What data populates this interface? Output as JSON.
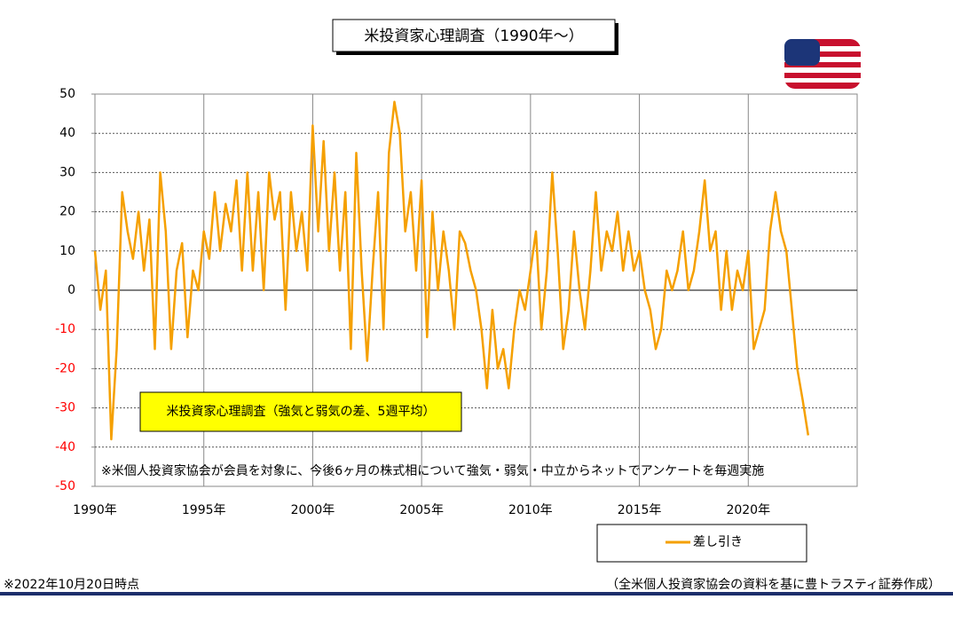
{
  "chart_data": {
    "type": "line",
    "title": "米投資家心理調査（1990年～）",
    "annotation": "米投資家心理調査（強気と弱気の差、5週平均）",
    "note": "※米個人投資家協会が会員を対象に、今後6ヶ月の株式相について強気・弱気・中立からネットでアンケートを毎週実施",
    "footer_left": "※2022年10月20日時点",
    "footer_right": "（全米個人投資家協会の資料を基に豊トラスティ証券作成）",
    "xlim": [
      1990,
      2025
    ],
    "xticks": [
      {
        "value": 1990,
        "label": "1990年"
      },
      {
        "value": 1995,
        "label": "1995年"
      },
      {
        "value": 2000,
        "label": "2000年"
      },
      {
        "value": 2005,
        "label": "2005年"
      },
      {
        "value": 2010,
        "label": "2010年"
      },
      {
        "value": 2015,
        "label": "2015年"
      },
      {
        "value": 2020,
        "label": "2020年"
      }
    ],
    "ylim": [
      -50,
      50
    ],
    "yticks": [
      -50,
      -40,
      -30,
      -20,
      -10,
      0,
      10,
      20,
      30,
      40,
      50
    ],
    "grid": true,
    "negative_tick_color": "#ff0000",
    "x": [
      1990,
      1990.25,
      1990.5,
      1990.75,
      1991,
      1991.25,
      1991.5,
      1991.75,
      1992,
      1992.25,
      1992.5,
      1992.75,
      1993,
      1993.25,
      1993.5,
      1993.75,
      1994,
      1994.25,
      1994.5,
      1994.75,
      1995,
      1995.25,
      1995.5,
      1995.75,
      1996,
      1996.25,
      1996.5,
      1996.75,
      1997,
      1997.25,
      1997.5,
      1997.75,
      1998,
      1998.25,
      1998.5,
      1998.75,
      1999,
      1999.25,
      1999.5,
      1999.75,
      2000,
      2000.25,
      2000.5,
      2000.75,
      2001,
      2001.25,
      2001.5,
      2001.75,
      2002,
      2002.25,
      2002.5,
      2002.75,
      2003,
      2003.25,
      2003.5,
      2003.75,
      2004,
      2004.25,
      2004.5,
      2004.75,
      2005,
      2005.25,
      2005.5,
      2005.75,
      2006,
      2006.25,
      2006.5,
      2006.75,
      2007,
      2007.25,
      2007.5,
      2007.75,
      2008,
      2008.25,
      2008.5,
      2008.75,
      2009,
      2009.25,
      2009.5,
      2009.75,
      2010,
      2010.25,
      2010.5,
      2010.75,
      2011,
      2011.25,
      2011.5,
      2011.75,
      2012,
      2012.25,
      2012.5,
      2012.75,
      2013,
      2013.25,
      2013.5,
      2013.75,
      2014,
      2014.25,
      2014.5,
      2014.75,
      2015,
      2015.25,
      2015.5,
      2015.75,
      2016,
      2016.25,
      2016.5,
      2016.75,
      2017,
      2017.25,
      2017.5,
      2017.75,
      2018,
      2018.25,
      2018.5,
      2018.75,
      2019,
      2019.25,
      2019.5,
      2019.75,
      2020,
      2020.25,
      2020.5,
      2020.75,
      2021,
      2021.25,
      2021.5,
      2021.75,
      2022,
      2022.25,
      2022.5,
      2022.75
    ],
    "series": [
      {
        "name": "差し引き",
        "color": "#f5a000",
        "values": [
          10,
          -5,
          5,
          -38,
          -15,
          25,
          15,
          8,
          20,
          5,
          18,
          -15,
          30,
          15,
          -15,
          5,
          12,
          -12,
          5,
          0,
          15,
          8,
          25,
          10,
          22,
          15,
          28,
          5,
          30,
          5,
          25,
          0,
          30,
          18,
          25,
          -5,
          25,
          10,
          20,
          5,
          42,
          15,
          38,
          10,
          30,
          5,
          25,
          -15,
          35,
          5,
          -18,
          5,
          25,
          -10,
          35,
          48,
          40,
          15,
          25,
          5,
          28,
          -12,
          20,
          0,
          15,
          5,
          -10,
          15,
          12,
          5,
          0,
          -10,
          -25,
          -5,
          -20,
          -15,
          -25,
          -10,
          0,
          -5,
          5,
          15,
          -10,
          5,
          30,
          10,
          -15,
          -5,
          15,
          0,
          -10,
          5,
          25,
          5,
          15,
          10,
          20,
          5,
          15,
          5,
          10,
          0,
          -5,
          -15,
          -10,
          5,
          0,
          5,
          15,
          0,
          5,
          15,
          28,
          10,
          15,
          -5,
          10,
          -5,
          5,
          0,
          10,
          -15,
          -10,
          -5,
          15,
          25,
          15,
          10,
          -5,
          -20,
          -28,
          -37
        ]
      }
    ]
  }
}
